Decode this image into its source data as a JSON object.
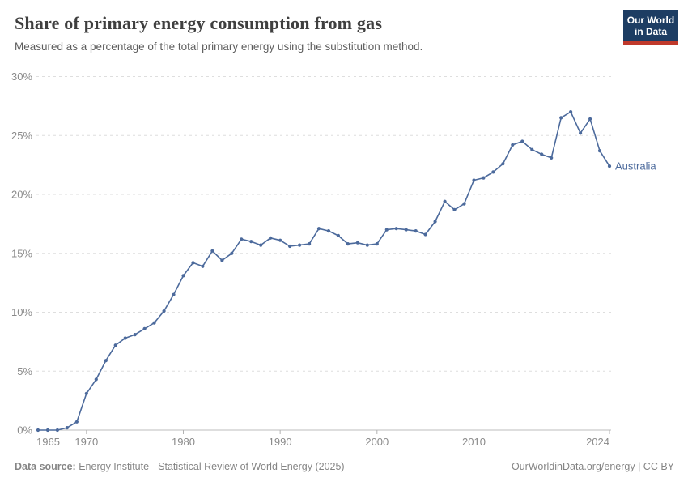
{
  "header": {
    "title": "Share of primary energy consumption from gas",
    "subtitle": "Measured as a percentage of the total primary energy using the substitution method.",
    "logo": {
      "line1": "Our World",
      "line2": "in Data",
      "bg_color": "#1d3d63",
      "bar_color": "#c0392b"
    }
  },
  "chart_data": {
    "type": "line",
    "title": "Share of primary energy consumption from gas",
    "xlabel": "",
    "ylabel": "",
    "xlim": [
      1965,
      2024
    ],
    "ylim": [
      0,
      30
    ],
    "grid": "horizontal-dashed",
    "legend_position": "end-of-line-label",
    "x_ticks": [
      1965,
      1970,
      1980,
      1990,
      2000,
      2010,
      2024
    ],
    "y_ticks": [
      "0%",
      "5%",
      "10%",
      "15%",
      "20%",
      "25%",
      "30%"
    ],
    "series": [
      {
        "name": "Australia",
        "color": "#4C6A9C",
        "x": [
          1965,
          1966,
          1967,
          1968,
          1969,
          1970,
          1971,
          1972,
          1973,
          1974,
          1975,
          1976,
          1977,
          1978,
          1979,
          1980,
          1981,
          1982,
          1983,
          1984,
          1985,
          1986,
          1987,
          1988,
          1989,
          1990,
          1991,
          1992,
          1993,
          1994,
          1995,
          1996,
          1997,
          1998,
          1999,
          2000,
          2001,
          2002,
          2003,
          2004,
          2005,
          2006,
          2007,
          2008,
          2009,
          2010,
          2011,
          2012,
          2013,
          2014,
          2015,
          2016,
          2017,
          2018,
          2019,
          2020,
          2021,
          2022,
          2023,
          2024
        ],
        "values": [
          0.0,
          0.0,
          0.0,
          0.2,
          0.7,
          3.1,
          4.3,
          5.9,
          7.2,
          7.8,
          8.1,
          8.6,
          9.1,
          10.1,
          11.5,
          13.1,
          14.2,
          13.9,
          15.2,
          14.4,
          15.0,
          16.2,
          16.0,
          15.7,
          16.3,
          16.1,
          15.6,
          15.7,
          15.8,
          17.1,
          16.9,
          16.5,
          15.8,
          15.9,
          15.7,
          15.8,
          17.0,
          17.1,
          17.0,
          16.9,
          16.6,
          17.7,
          19.4,
          18.7,
          19.2,
          21.2,
          21.4,
          21.9,
          22.6,
          24.2,
          24.5,
          23.8,
          23.4,
          23.1,
          26.5,
          27.0,
          25.2,
          26.4,
          23.7,
          22.4
        ]
      }
    ]
  },
  "footer": {
    "datasource_label": "Data source:",
    "datasource": " Energy Institute - Statistical Review of World Energy (2025)",
    "credit": "OurWorldinData.org/energy | CC BY"
  }
}
